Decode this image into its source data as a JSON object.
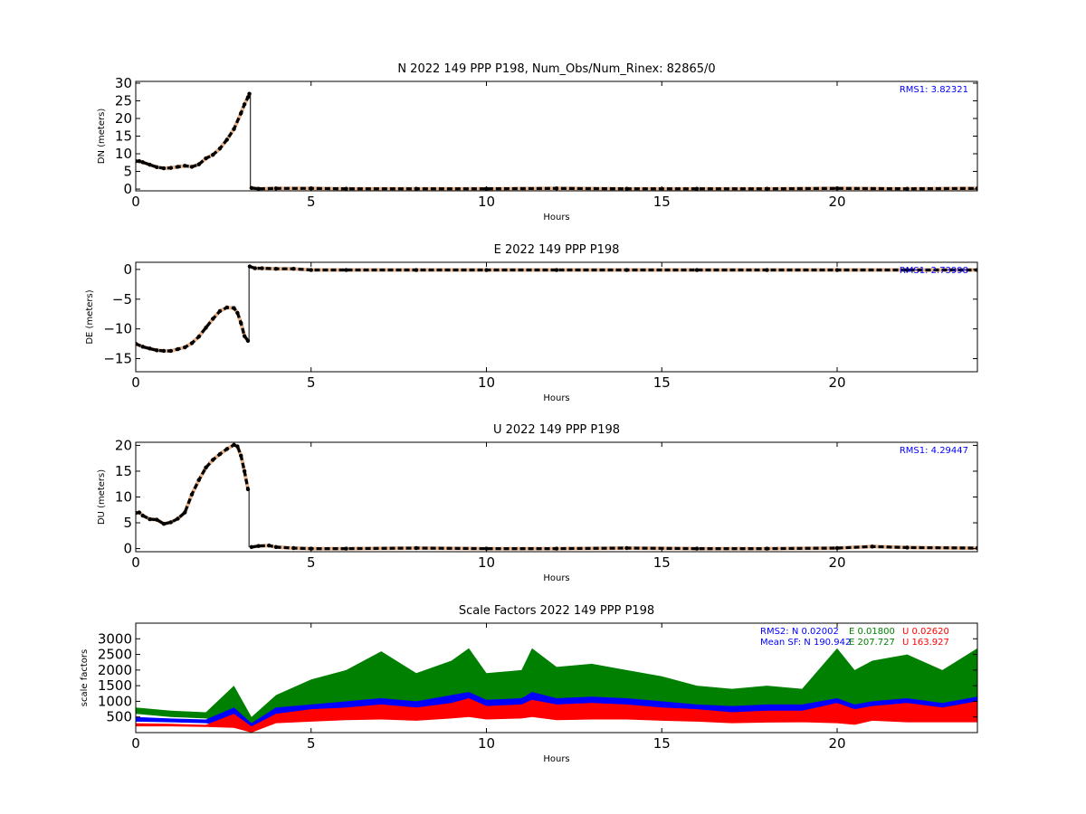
{
  "chart_data": [
    {
      "type": "scatter",
      "title": "N 2022 149 PPP  P198, Num_Obs/Num_Rinex: 82865/0",
      "xlabel": "Hours",
      "ylabel": "DN (meters)",
      "xlim": [
        0,
        24
      ],
      "ylim": [
        -0.5,
        30.5
      ],
      "xticks": [
        "0",
        "5",
        "10",
        "15",
        "20"
      ],
      "yticks": [
        "0",
        "5",
        "10",
        "15",
        "20",
        "25",
        "30"
      ],
      "annotation": "RMS1:  3.82321",
      "annotation_color": "#0000ff",
      "series": [
        {
          "color": "#000000",
          "x": [
            0.0,
            0.1,
            0.2,
            0.4,
            0.6,
            0.8,
            1.0,
            1.2,
            1.4,
            1.6,
            1.8,
            2.0,
            2.2,
            2.4,
            2.6,
            2.8,
            3.0,
            3.1,
            3.2,
            3.24
          ],
          "y": [
            7.9,
            7.9,
            7.6,
            6.9,
            6.2,
            5.9,
            6.0,
            6.3,
            6.6,
            6.3,
            7.0,
            8.7,
            9.7,
            11.5,
            14.0,
            17.0,
            21.5,
            24.0,
            26.0,
            27.0
          ]
        },
        {
          "color": "#000000",
          "x": [
            3.3,
            3.5,
            4.0,
            5.0,
            6.0,
            8.0,
            10.0,
            12.0,
            14.0,
            16.0,
            18.0,
            20.0,
            22.0,
            24.0
          ],
          "y": [
            0.3,
            0.1,
            0.2,
            0.2,
            0.1,
            0.1,
            0.1,
            0.2,
            0.1,
            0.1,
            0.1,
            0.2,
            0.1,
            0.2
          ]
        }
      ]
    },
    {
      "type": "scatter",
      "title": "E 2022 149 PPP  P198",
      "xlabel": "Hours",
      "ylabel": "DE (meters)",
      "xlim": [
        0,
        24
      ],
      "ylim": [
        -17.2,
        1.2
      ],
      "xticks": [
        "0",
        "5",
        "10",
        "15",
        "20"
      ],
      "yticks": [
        "0",
        "−5",
        "−10",
        "−15"
      ],
      "annotation": "RMS1:  2.73998",
      "annotation_color": "#0000ff",
      "series": [
        {
          "color": "#000000",
          "x": [
            0.0,
            0.2,
            0.4,
            0.6,
            0.8,
            1.0,
            1.2,
            1.4,
            1.6,
            1.8,
            2.0,
            2.2,
            2.4,
            2.6,
            2.8,
            2.9,
            3.0,
            3.1,
            3.2
          ],
          "y": [
            -12.5,
            -13.0,
            -13.3,
            -13.6,
            -13.7,
            -13.7,
            -13.4,
            -13.1,
            -12.4,
            -11.3,
            -9.8,
            -8.3,
            -7.0,
            -6.4,
            -6.5,
            -7.3,
            -9.0,
            -11.2,
            -12.0
          ]
        },
        {
          "color": "#000000",
          "x": [
            3.25,
            3.4,
            3.6,
            4.0,
            4.5,
            5.0,
            6.0,
            8.0,
            10.0,
            12.0,
            14.0,
            16.0,
            18.0,
            20.0,
            22.0,
            24.0
          ],
          "y": [
            0.5,
            0.2,
            0.2,
            0.1,
            0.1,
            -0.1,
            -0.1,
            -0.1,
            -0.1,
            -0.1,
            -0.1,
            -0.1,
            -0.1,
            -0.1,
            -0.1,
            -0.1
          ]
        }
      ]
    },
    {
      "type": "scatter",
      "title": "U 2022 149 PPP  P198",
      "xlabel": "Hours",
      "ylabel": "DU (meters)",
      "xlim": [
        0,
        24
      ],
      "ylim": [
        -0.6,
        20.6
      ],
      "xticks": [
        "0",
        "5",
        "10",
        "15",
        "20"
      ],
      "yticks": [
        "0",
        "5",
        "10",
        "15",
        "20"
      ],
      "annotation": "RMS1:  4.29447",
      "annotation_color": "#0000ff",
      "series": [
        {
          "color": "#000000",
          "x": [
            0.0,
            0.1,
            0.2,
            0.4,
            0.6,
            0.8,
            1.0,
            1.2,
            1.4,
            1.6,
            1.8,
            2.0,
            2.2,
            2.4,
            2.6,
            2.8,
            2.9,
            3.0,
            3.1,
            3.2
          ],
          "y": [
            6.9,
            7.0,
            6.4,
            5.7,
            5.6,
            4.8,
            5.1,
            5.8,
            7.0,
            10.5,
            13.3,
            15.7,
            17.2,
            18.3,
            19.3,
            20.1,
            19.8,
            18.0,
            15.0,
            11.5
          ]
        },
        {
          "color": "#000000",
          "x": [
            3.3,
            3.5,
            3.8,
            4.0,
            4.5,
            5.0,
            6.0,
            8.0,
            10.0,
            12.0,
            14.0,
            16.0,
            18.0,
            20.0,
            21.0,
            22.0,
            24.0
          ],
          "y": [
            0.3,
            0.5,
            0.6,
            0.3,
            0.1,
            0.0,
            0.0,
            0.1,
            0.0,
            0.0,
            0.1,
            0.0,
            0.0,
            0.1,
            0.4,
            0.2,
            0.1
          ]
        }
      ]
    },
    {
      "type": "area",
      "title": "Scale Factors 2022 149 PPP  P198",
      "xlabel": "Hours",
      "ylabel": "scale factors",
      "xlim": [
        0,
        24
      ],
      "ylim": [
        0,
        3500
      ],
      "xticks": [
        "0",
        "5",
        "10",
        "15",
        "20"
      ],
      "yticks": [
        "500",
        "1000",
        "1500",
        "2000",
        "2500",
        "3000"
      ],
      "legend_rows": [
        [
          {
            "text": "RMS2: N  0.02002",
            "color": "#0000ff"
          },
          {
            "text": "E  0.01800",
            "color": "#008000"
          },
          {
            "text": "U  0.02620",
            "color": "#ff0000"
          }
        ],
        [
          {
            "text": "Mean SF: N 190.942",
            "color": "#0000ff"
          },
          {
            "text": "E 207.727",
            "color": "#008000"
          },
          {
            "text": "U 163.927",
            "color": "#ff0000"
          }
        ]
      ],
      "x": [
        0,
        1,
        2,
        2.8,
        3.3,
        4,
        5,
        6,
        7,
        8,
        9,
        9.5,
        10,
        11,
        11.3,
        12,
        13,
        14,
        15,
        16,
        17,
        18,
        19,
        20,
        20.5,
        21,
        22,
        23,
        24
      ],
      "series": [
        {
          "name": "E",
          "color": "#008000",
          "low": [
            600,
            500,
            450,
            300,
            0,
            600,
            800,
            900,
            1000,
            900,
            1000,
            1100,
            900,
            1000,
            1100,
            900,
            900,
            900,
            900,
            800,
            650,
            800,
            900,
            700,
            600,
            900,
            800,
            800,
            900
          ],
          "high": [
            800,
            700,
            650,
            1500,
            500,
            1200,
            1700,
            2000,
            2600,
            1900,
            2300,
            2700,
            1900,
            2000,
            2700,
            2100,
            2200,
            2000,
            1800,
            1500,
            1400,
            1500,
            1400,
            2700,
            2000,
            2300,
            2500,
            2000,
            2700
          ]
        },
        {
          "name": "N",
          "color": "#0000ff",
          "low": [
            350,
            330,
            300,
            200,
            0,
            400,
            450,
            500,
            550,
            500,
            600,
            650,
            550,
            600,
            650,
            550,
            550,
            550,
            500,
            450,
            400,
            450,
            450,
            400,
            350,
            500,
            450,
            450,
            450
          ],
          "high": [
            500,
            450,
            420,
            800,
            300,
            800,
            900,
            1000,
            1100,
            1000,
            1200,
            1300,
            1050,
            1100,
            1300,
            1100,
            1150,
            1100,
            1000,
            900,
            850,
            900,
            900,
            1100,
            900,
            1000,
            1100,
            950,
            1150
          ]
        },
        {
          "name": "U",
          "color": "#ff0000",
          "low": [
            200,
            200,
            180,
            150,
            0,
            300,
            350,
            400,
            420,
            380,
            450,
            500,
            420,
            450,
            500,
            400,
            420,
            420,
            380,
            350,
            300,
            320,
            330,
            300,
            250,
            380,
            330,
            330,
            330
          ],
          "high": [
            300,
            280,
            250,
            600,
            200,
            600,
            750,
            800,
            900,
            800,
            950,
            1100,
            850,
            900,
            1050,
            900,
            950,
            900,
            800,
            750,
            650,
            700,
            700,
            950,
            750,
            850,
            950,
            800,
            1000
          ]
        }
      ]
    }
  ]
}
